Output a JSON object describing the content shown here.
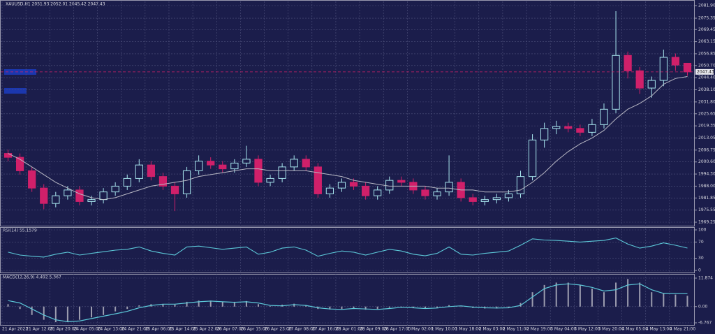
{
  "chart_data": [
    {
      "type": "candlestick",
      "title": "XAUUSD,H1  2051.93 2052.01 2045.42 2047.43",
      "x": [
        "21 Apr 2023",
        null,
        "21 Apr 12:00",
        null,
        "21 Apr 20:00",
        null,
        "24 Apr 05:00",
        null,
        "24 Apr 13:00",
        null,
        "24 Apr 21:00",
        null,
        "25 Apr 06:00",
        null,
        "25 Apr 14:00",
        null,
        "25 Apr 22:00",
        null,
        "26 Apr 07:00",
        null,
        "26 Apr 15:00",
        null,
        "26 Apr 23:00",
        null,
        "27 Apr 08:00",
        null,
        "27 Apr 16:00",
        null,
        "28 Apr 01:00",
        null,
        "28 Apr 09:00",
        null,
        "28 Apr 17:00",
        null,
        "1 May 02:00",
        null,
        "1 May 10:00",
        null,
        "1 May 18:00",
        null,
        "2 May 03:00",
        null,
        "2 May 11:00",
        null,
        "2 May 19:00",
        null,
        "3 May 04:00",
        null,
        "3 May 12:00",
        null,
        "3 May 20:00",
        null,
        "4 May 05:00",
        null,
        "4 May 13:00",
        null,
        "4 May 21:00",
        null
      ],
      "open": [
        2005,
        2003,
        1996,
        1987,
        1979,
        1983,
        1986,
        1980,
        1981,
        1985,
        1988,
        1992,
        1999,
        1993,
        1988,
        1984,
        1996,
        2001,
        1999,
        1997,
        2000,
        2002,
        1990,
        1992,
        1998,
        2002,
        1998,
        1984,
        1987,
        1990,
        1988,
        1983,
        1986,
        1991,
        1990,
        1986,
        1983,
        1985,
        1990,
        1982,
        1980,
        1981,
        1982,
        1984,
        1993,
        2012,
        2018,
        2019,
        2018,
        2016,
        2020,
        2028,
        2056,
        2048,
        2039,
        2043,
        2055,
        2051.93
      ],
      "high": [
        2007,
        2005,
        1998,
        1989,
        1985,
        1988,
        1988,
        1983,
        1987,
        1990,
        1994,
        2002,
        2001,
        1995,
        1990,
        1998,
        2004,
        2003,
        2001,
        2002,
        2009,
        2004,
        1994,
        2000,
        2004,
        2004,
        2000,
        1989,
        1992,
        1992,
        1990,
        1988,
        1993,
        1993,
        1992,
        1988,
        1987,
        2004,
        1992,
        1984,
        1983,
        1984,
        1986,
        1996,
        2015,
        2021,
        2022,
        2021,
        2020,
        2023,
        2031,
        2079,
        2058,
        2050,
        2045,
        2059,
        2057,
        2052.01
      ],
      "low": [
        2001,
        1994,
        1985,
        1976,
        1977,
        1981,
        1978,
        1978,
        1979,
        1983,
        1986,
        1990,
        1991,
        1986,
        1975,
        1982,
        1994,
        1997,
        1995,
        1995,
        1998,
        1988,
        1988,
        1990,
        1996,
        1996,
        1982,
        1982,
        1985,
        1986,
        1981,
        1981,
        1984,
        1988,
        1984,
        1981,
        1981,
        1983,
        1980,
        1978,
        1978,
        1979,
        1980,
        1982,
        1991,
        2008,
        2015,
        2016,
        2014,
        2014,
        2018,
        2026,
        2044,
        2036,
        2034,
        2040,
        2048,
        2045.42
      ],
      "close": [
        2003,
        1996,
        1987,
        1979,
        1983,
        1986,
        1980,
        1981,
        1985,
        1988,
        1992,
        1999,
        1993,
        1988,
        1984,
        1996,
        2001,
        1999,
        1997,
        2000,
        2002,
        1990,
        1992,
        1998,
        2002,
        1998,
        1984,
        1987,
        1990,
        1988,
        1983,
        1986,
        1991,
        1990,
        1986,
        1983,
        1985,
        1990,
        1982,
        1980,
        1981,
        1982,
        1984,
        1993,
        2012,
        2018,
        2019,
        2018,
        2016,
        2020,
        2028,
        2056,
        2048,
        2039,
        2043,
        2055,
        2051,
        2047.43
      ],
      "ma": [
        2005,
        2002,
        1998,
        1994,
        1990,
        1987,
        1984,
        1982,
        1981,
        1982,
        1984,
        1986,
        1988,
        1989,
        1990,
        1991,
        1993,
        1994,
        1995,
        1996,
        1997,
        1997,
        1996,
        1996,
        1996,
        1996,
        1995,
        1994,
        1993,
        1991,
        1990,
        1989,
        1988,
        1988,
        1988,
        1988,
        1987,
        1987,
        1986,
        1986,
        1985,
        1985,
        1985,
        1986,
        1990,
        1995,
        2001,
        2006,
        2010,
        2013,
        2017,
        2023,
        2028,
        2031,
        2035,
        2041,
        2044,
        2045
      ],
      "up_color": "#a8e6ee",
      "down_color": "#d0206a",
      "ma_color": "#b8b8c4",
      "price_line_color": "#d0206a",
      "ylim": [
        1969.25,
        2081.9
      ],
      "yticks": [
        {
          "value": 2081.9,
          "label": "2081.90"
        },
        2075.35,
        2069.45,
        2063.15,
        2056.85,
        {
          "value": 2050.7,
          "label": "2050.70"
        },
        {
          "value": 2044.4,
          "label": "2044.40"
        },
        {
          "value": 2038.1,
          "label": "2038.10"
        },
        {
          "value": 2031.8,
          "label": "2031.80"
        },
        2025.65,
        2019.35,
        2013.05,
        2006.75,
        {
          "value": 2000.6,
          "label": "2000.60"
        },
        {
          "value": 1994.3,
          "label": "1994.30"
        },
        {
          "value": 1988,
          "label": "1988.00"
        },
        1981.85,
        1975.55,
        1969.25
      ],
      "grid": true
    },
    {
      "type": "line",
      "title": "RSI(14) 55.1579",
      "values": [
        45,
        38,
        35,
        33,
        40,
        45,
        38,
        42,
        46,
        50,
        52,
        58,
        48,
        42,
        38,
        58,
        60,
        56,
        52,
        55,
        58,
        40,
        45,
        55,
        58,
        50,
        35,
        42,
        48,
        45,
        38,
        45,
        52,
        48,
        40,
        36,
        42,
        58,
        40,
        38,
        42,
        45,
        48,
        62,
        78,
        75,
        74,
        72,
        70,
        72,
        74,
        80,
        65,
        55,
        60,
        68,
        62,
        55.1579
      ],
      "color": "#5cc8d8",
      "ylim": [
        0,
        100
      ],
      "yticks": [
        100,
        70,
        30,
        0
      ],
      "grid": true
    },
    {
      "type": "macd",
      "title": "MACD(12,26,9) 4.492 5.367",
      "values": [
        1,
        -1,
        -3.5,
        -5.5,
        -6.5,
        -6.5,
        -5.5,
        -4.5,
        -3.5,
        -2,
        -1,
        0.5,
        1,
        1,
        0.8,
        2,
        2.5,
        2.5,
        2,
        2,
        2.3,
        1,
        0.2,
        0.8,
        1.2,
        0.5,
        -1,
        -1.2,
        -1,
        -0.8,
        -1.3,
        -1,
        -0.5,
        -0.2,
        -0.6,
        -0.9,
        -0.5,
        0.6,
        0,
        -0.6,
        -0.8,
        -0.8,
        -0.4,
        1.5,
        6,
        9,
        10,
        10,
        9,
        7.5,
        6,
        10,
        11.5,
        10,
        6,
        5.5,
        5,
        4.492
      ],
      "signal": [
        2.5,
        1.5,
        -1,
        -3.5,
        -5.5,
        -6.3,
        -6,
        -5,
        -4,
        -3,
        -2,
        -0.5,
        0.5,
        1,
        1,
        1.5,
        2,
        2.3,
        2,
        1.8,
        2,
        1.5,
        0.5,
        0.3,
        0.8,
        0.5,
        -0.5,
        -1,
        -1.2,
        -0.8,
        -1,
        -1.2,
        -0.8,
        -0.3,
        -0.5,
        -0.8,
        -0.6,
        0,
        0.3,
        -0.2,
        -0.5,
        -0.6,
        -0.5,
        0.5,
        4,
        7.5,
        9,
        9.5,
        9,
        8,
        6.5,
        7,
        9,
        9.5,
        7,
        5.5,
        5.4,
        5.367
      ],
      "color": "#c8c8d0",
      "signal_color": "#5cc8d8",
      "ylim": [
        -6.767,
        11.874
      ],
      "yticks": [
        11.874,
        {
          "value": 0,
          "label": "0.00"
        },
        -6.767
      ],
      "grid": true
    }
  ]
}
